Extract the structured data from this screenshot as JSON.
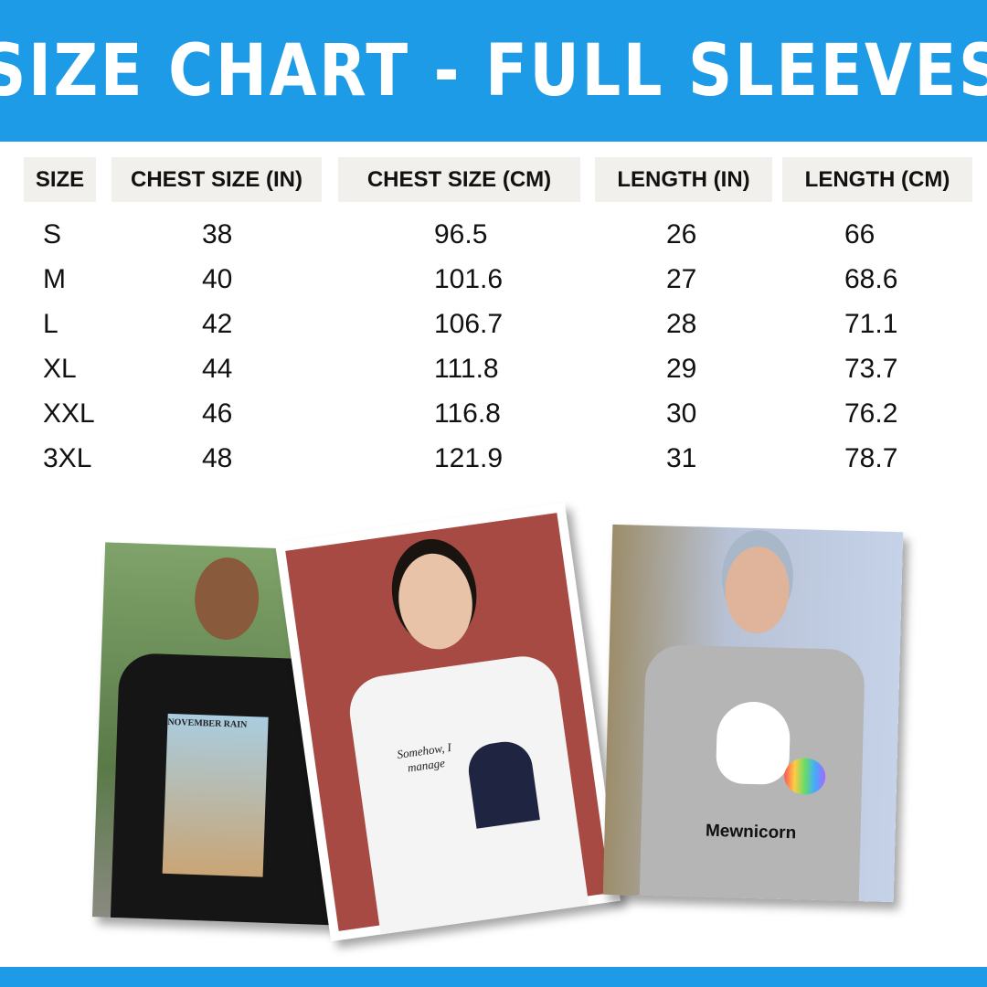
{
  "title": "SIZE CHART - FULL SLEEVES",
  "colors": {
    "accent": "#1e9be6",
    "header_cell": "#f1f0ec"
  },
  "table": {
    "headers": [
      "SIZE",
      "CHEST SIZE (IN)",
      "CHEST SIZE (CM)",
      "LENGTH (IN)",
      "LENGTH (CM)"
    ],
    "rows": [
      [
        "S",
        "38",
        "96.5",
        "26",
        "66"
      ],
      [
        "M",
        "40",
        "101.6",
        "27",
        "68.6"
      ],
      [
        "L",
        "42",
        "106.7",
        "28",
        "71.1"
      ],
      [
        "XL",
        "44",
        "111.8",
        "29",
        "73.7"
      ],
      [
        "XXL",
        "46",
        "116.8",
        "30",
        "76.2"
      ],
      [
        "3XL",
        "48",
        "121.9",
        "31",
        "78.7"
      ]
    ]
  },
  "photos": [
    {
      "print_text": "NOVEMBER RAIN",
      "shirt_color": "black"
    },
    {
      "print_text": "Somehow, I manage",
      "shirt_color": "white"
    },
    {
      "print_text": "Mewnicorn",
      "shirt_color": "grey"
    }
  ]
}
